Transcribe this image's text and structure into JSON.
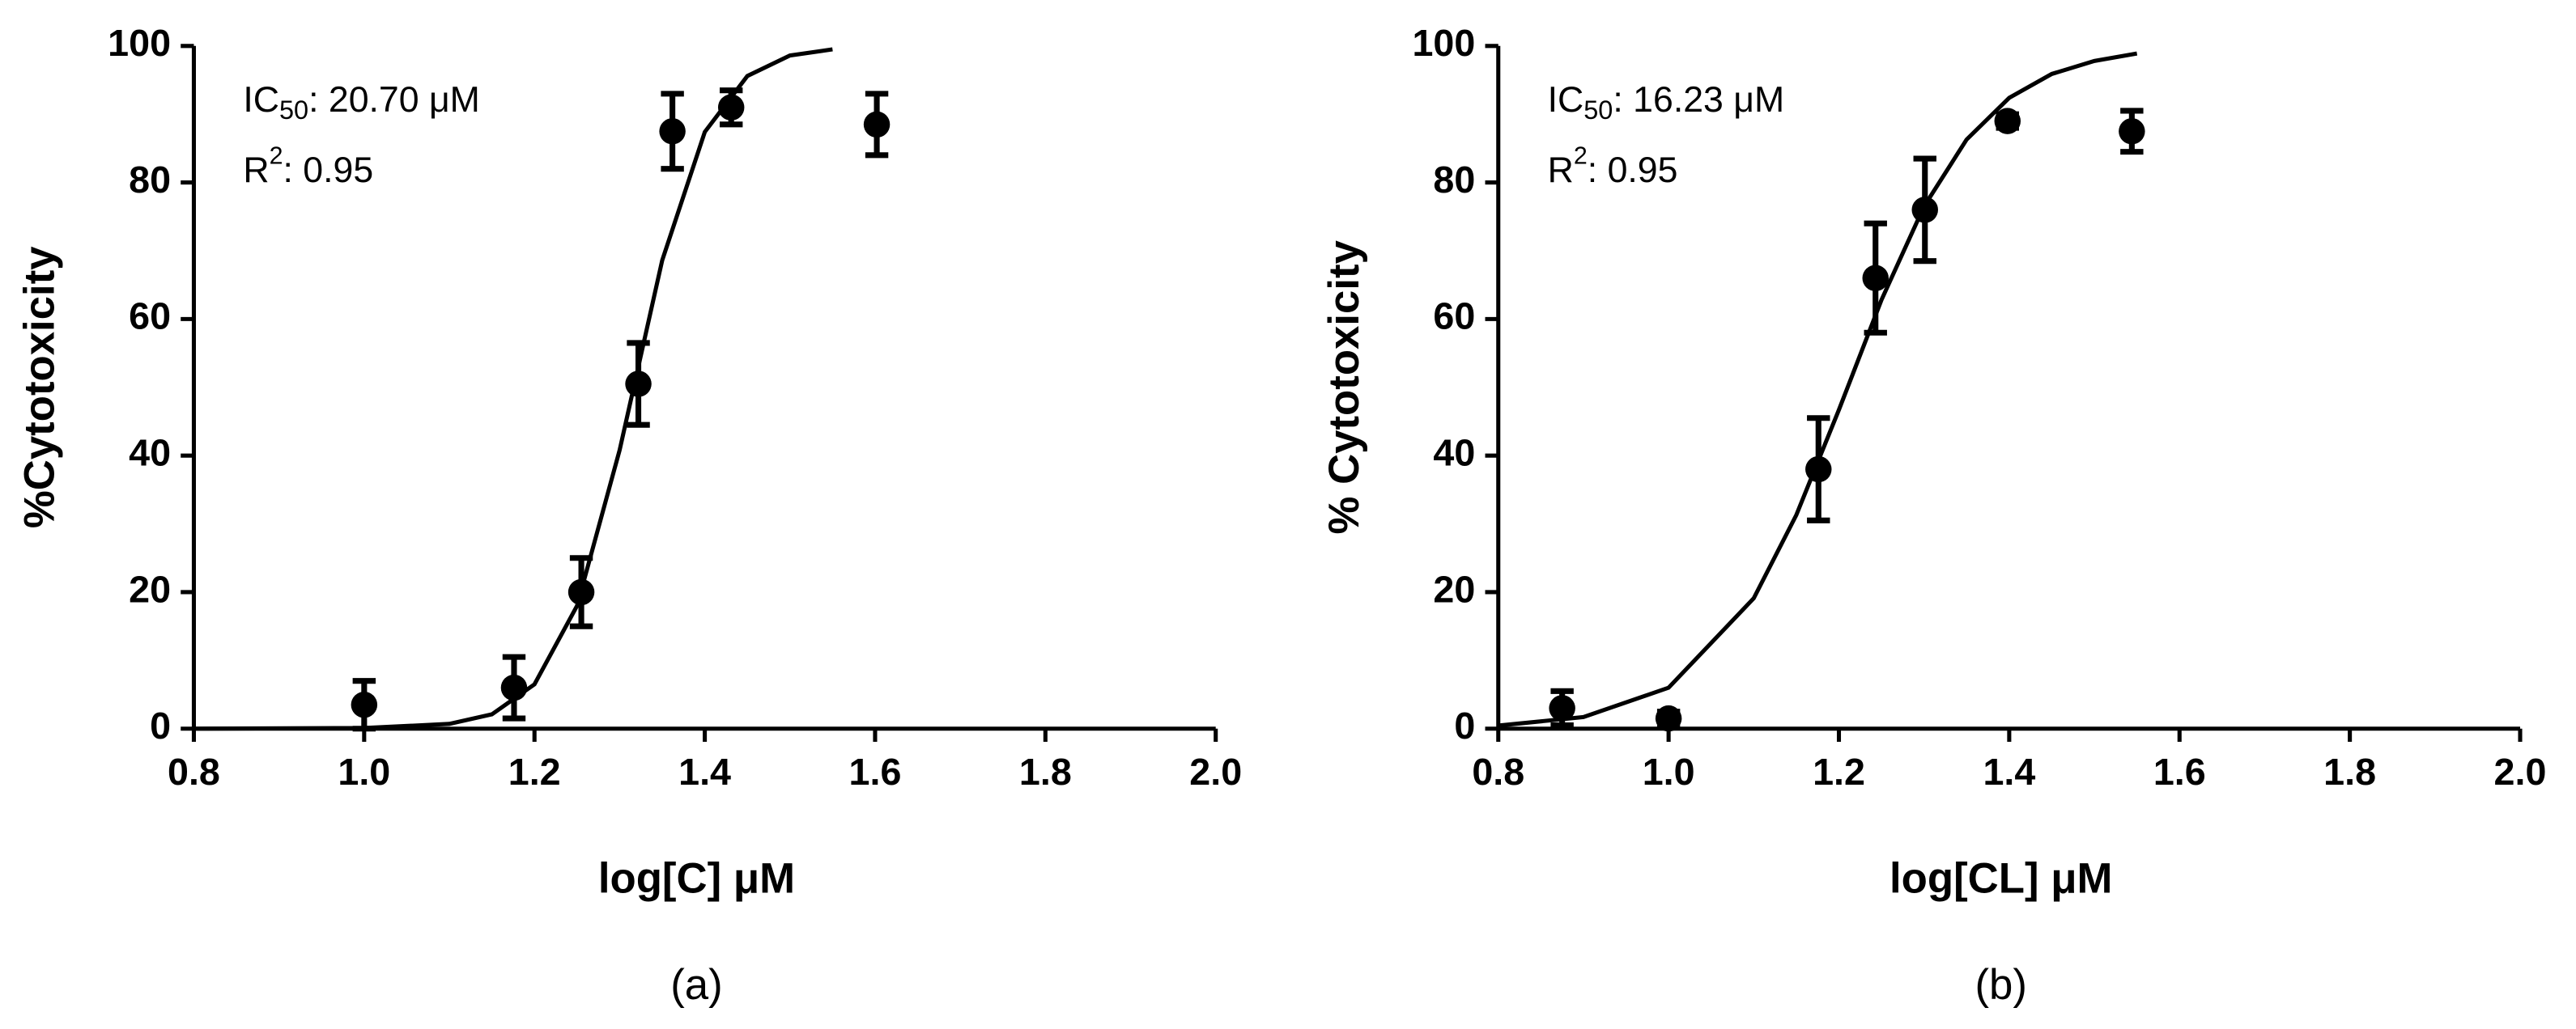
{
  "chart_data": [
    {
      "type": "scatter",
      "panel_label": "(a)",
      "xlabel": "log[C] μM",
      "ylabel": "%Cytotoxicity",
      "ic50_label": "IC",
      "ic50_sub": "50",
      "ic50_text": ": 20.70 μM",
      "r2_label": "R",
      "r2_sup": "2",
      "r2_text": ": 0.95",
      "color": "#000000",
      "points": {
        "x": [
          1.0,
          1.176,
          1.255,
          1.322,
          1.362,
          1.431,
          1.602
        ],
        "values": [
          3.5,
          6,
          20,
          50.5,
          87.5,
          91,
          88.5
        ],
        "errors": [
          3.5,
          4.5,
          5,
          6,
          5.5,
          2.5,
          4.5
        ]
      },
      "fit": {
        "x": [
          0.8,
          1.0,
          1.1,
          1.15,
          1.2,
          1.25,
          1.3,
          1.35,
          1.4,
          1.45,
          1.5,
          1.55
        ],
        "values": [
          0,
          0.1,
          0.7,
          2.1,
          6.5,
          18,
          40.8,
          68.6,
          87.4,
          95.6,
          98.6,
          99.5
        ]
      },
      "xlim": [
        0.8,
        2.0
      ],
      "xticks": [
        0.8,
        {
          "value": 1.0,
          "label": "1.0"
        },
        1.2,
        1.4,
        1.6,
        1.8,
        {
          "value": 2.0,
          "label": "2.0"
        }
      ],
      "ylim": [
        0,
        100
      ],
      "yticks": [
        0,
        20,
        40,
        60,
        80,
        100
      ]
    },
    {
      "type": "scatter",
      "panel_label": "(b)",
      "xlabel": "log[CL] μM",
      "ylabel": "% Cytotoxicity",
      "ic50_label": "IC",
      "ic50_sub": "50",
      "ic50_text": ": 16.23 μM",
      "r2_label": "R",
      "r2_sup": "2",
      "r2_text": ": 0.95",
      "color": "#000000",
      "points": {
        "x": [
          0.875,
          1.0,
          1.176,
          1.243,
          1.301,
          1.398,
          1.544
        ],
        "values": [
          3,
          1.5,
          38,
          66,
          76,
          89,
          87.5
        ],
        "errors": [
          2.5,
          1,
          7.5,
          8,
          7.5,
          1,
          3
        ]
      },
      "fit": {
        "x": [
          0.8,
          0.9,
          1.0,
          1.1,
          1.15,
          1.2,
          1.25,
          1.3,
          1.35,
          1.4,
          1.45,
          1.5,
          1.55
        ],
        "values": [
          0.45,
          1.7,
          6,
          19.1,
          31.3,
          46.7,
          62.8,
          76.5,
          86.3,
          92.4,
          95.9,
          97.8,
          98.9
        ]
      },
      "xlim": [
        0.8,
        2.0
      ],
      "xticks": [
        0.8,
        {
          "value": 1.0,
          "label": "1.0"
        },
        1.2,
        1.4,
        1.6,
        1.8,
        {
          "value": 2.0,
          "label": "2.0"
        }
      ],
      "ylim": [
        0,
        100
      ],
      "yticks": [
        0,
        20,
        40,
        60,
        80,
        100
      ]
    }
  ]
}
